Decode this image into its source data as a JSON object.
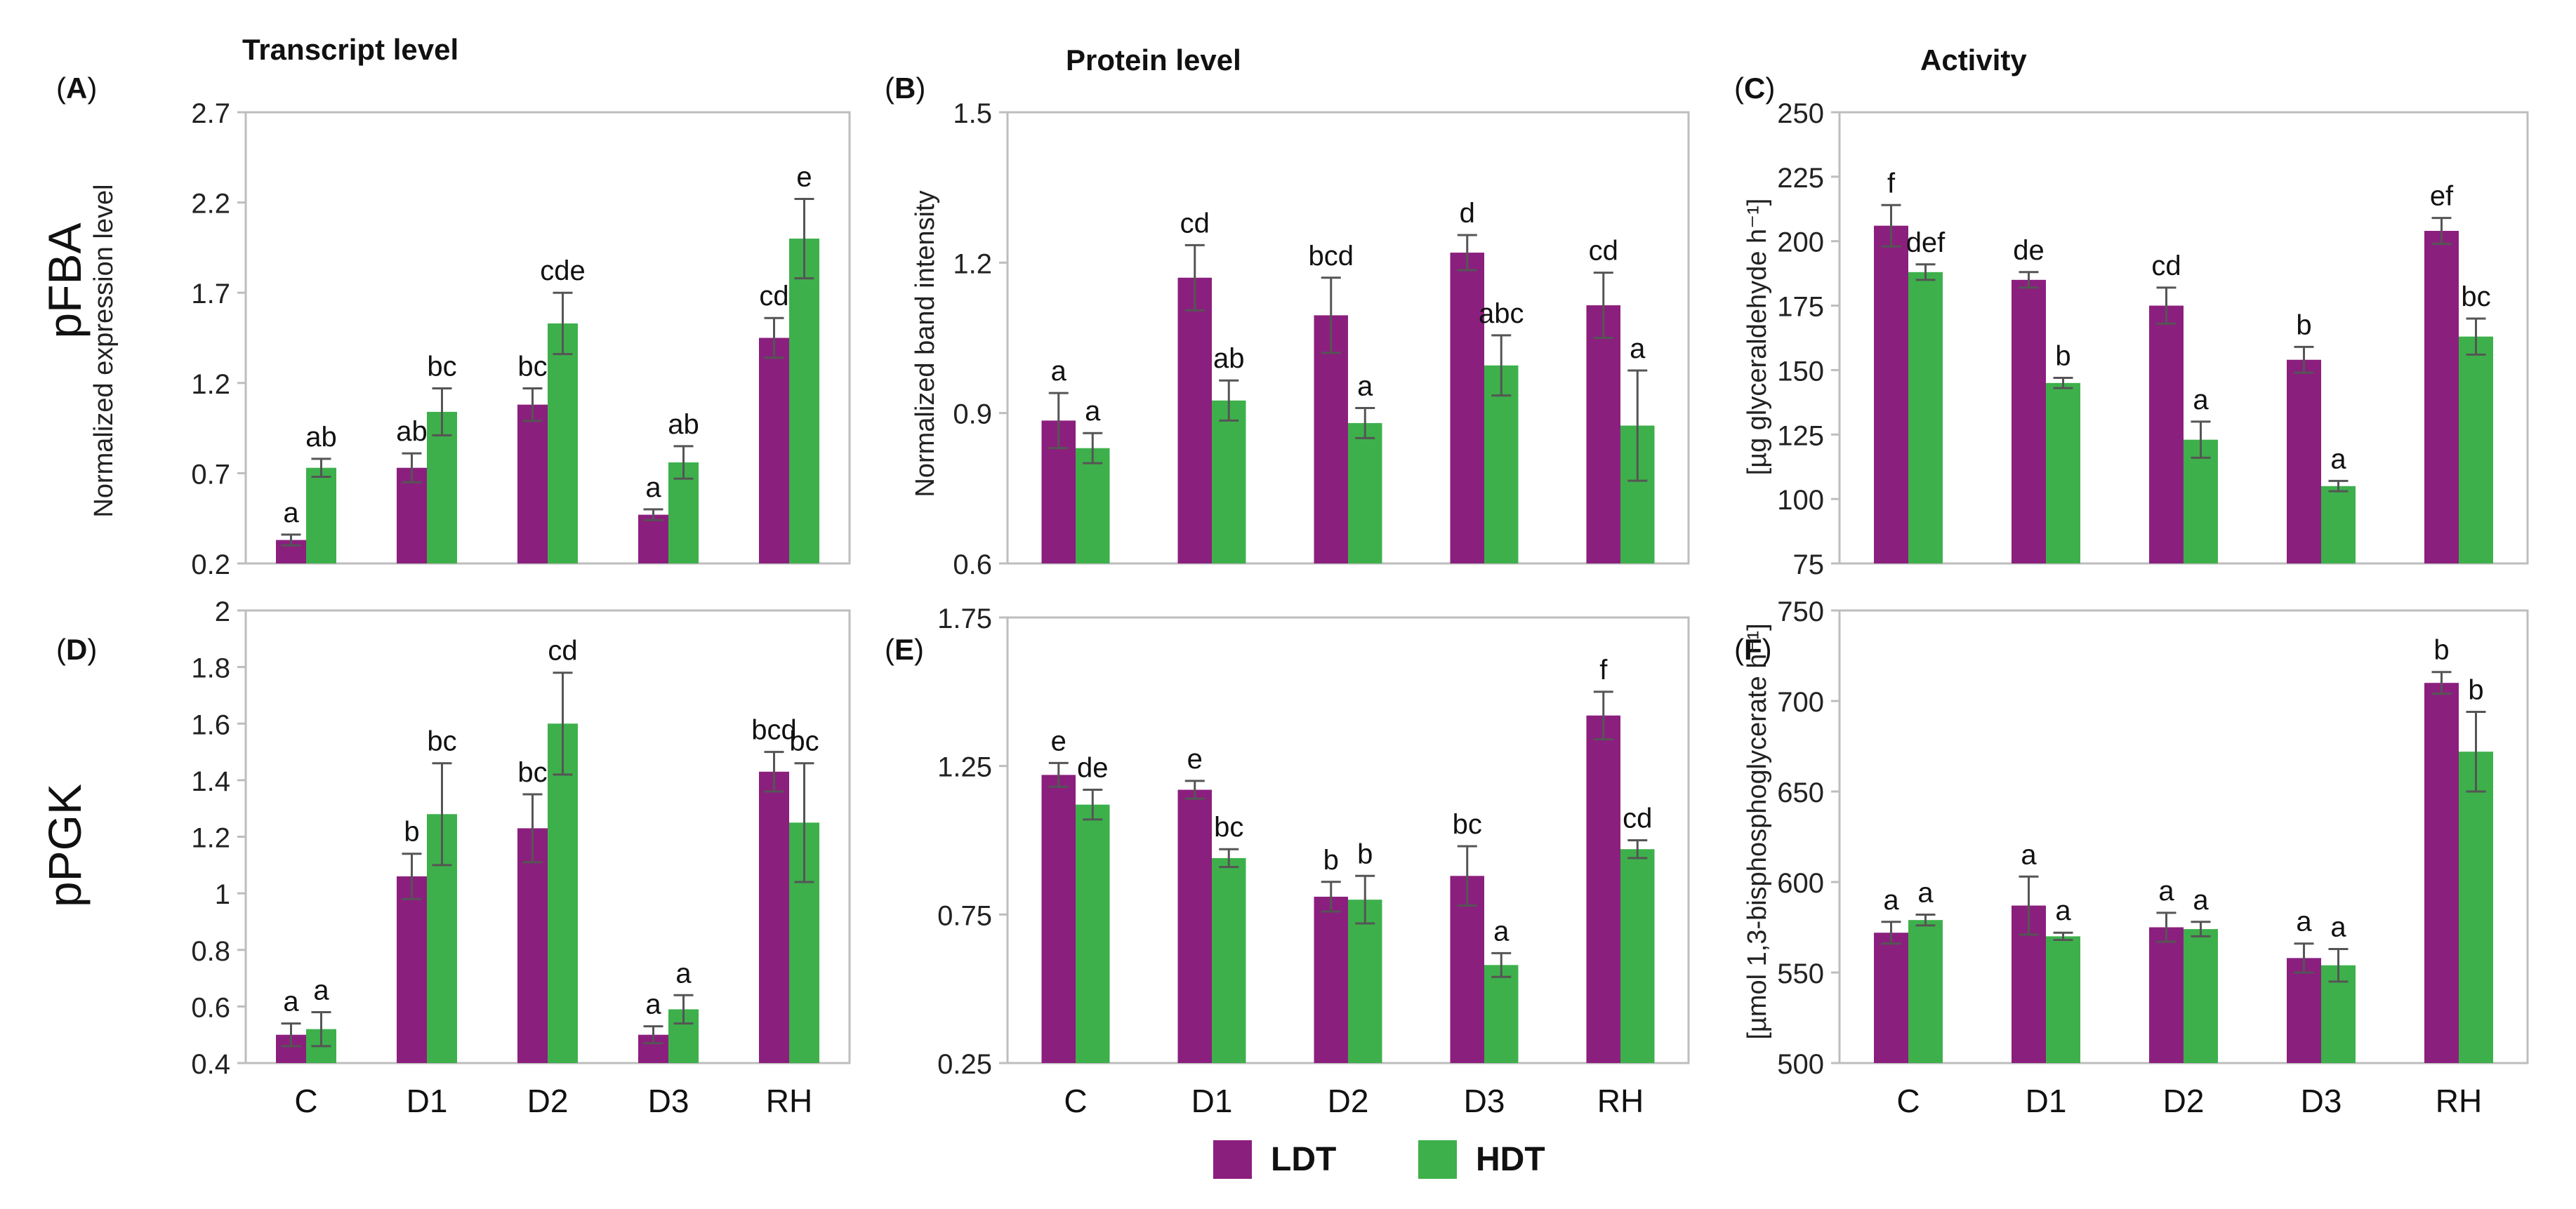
{
  "headers": {
    "col1": "Transcript level",
    "col2": "Protein level",
    "col3": "Activity"
  },
  "row_labels": {
    "top": "pFBA",
    "bottom": "pPGK"
  },
  "legend": {
    "ldt_label": "LDT",
    "hdt_label": "HDT",
    "ldt_color": "#8B1F7E",
    "hdt_color": "#3DB04B"
  },
  "chart_data": [
    {
      "id": "A",
      "panel_label": "(A)",
      "type": "bar",
      "categories": [
        "C",
        "D1",
        "D2",
        "D3",
        "RH"
      ],
      "ylabel": "Normalized expression level",
      "ylim": [
        0.2,
        2.7
      ],
      "yticks": [
        "0.2",
        "0.7",
        "1.2",
        "1.7",
        "2.2",
        "2.7"
      ],
      "grid": false,
      "series": [
        {
          "name": "LDT",
          "values": [
            0.33,
            0.73,
            1.08,
            0.47,
            1.45
          ],
          "errors": [
            0.03,
            0.08,
            0.09,
            0.03,
            0.11
          ],
          "letters": [
            "a",
            "ab",
            "bc",
            "a",
            "cd"
          ]
        },
        {
          "name": "HDT",
          "values": [
            0.73,
            1.04,
            1.53,
            0.76,
            2.0
          ],
          "errors": [
            0.05,
            0.13,
            0.17,
            0.09,
            0.22
          ],
          "letters": [
            "ab",
            "bc",
            "cde",
            "ab",
            "e"
          ]
        }
      ]
    },
    {
      "id": "B",
      "panel_label": "(B)",
      "type": "bar",
      "categories": [
        "C",
        "D1",
        "D2",
        "D3",
        "RH"
      ],
      "ylabel": "Normalized band intensity",
      "ylim": [
        0.6,
        1.5
      ],
      "yticks": [
        "0.6",
        "0.9",
        "1.2",
        "1.5"
      ],
      "grid": false,
      "series": [
        {
          "name": "LDT",
          "values": [
            0.885,
            1.17,
            1.095,
            1.22,
            1.115
          ],
          "errors": [
            0.055,
            0.065,
            0.075,
            0.035,
            0.065
          ],
          "letters": [
            "a",
            "cd",
            "bcd",
            "d",
            "cd"
          ]
        },
        {
          "name": "HDT",
          "values": [
            0.83,
            0.925,
            0.88,
            0.995,
            0.875
          ],
          "errors": [
            0.03,
            0.04,
            0.03,
            0.06,
            0.11
          ],
          "letters": [
            "a",
            "ab",
            "a",
            "abc",
            "a"
          ]
        }
      ]
    },
    {
      "id": "C",
      "panel_label": "(C)",
      "type": "bar",
      "categories": [
        "C",
        "D1",
        "D2",
        "D3",
        "RH"
      ],
      "ylabel": "[µg glyceraldehyde h⁻¹]",
      "ylim": [
        75,
        250
      ],
      "yticks": [
        "75",
        "100",
        "125",
        "150",
        "175",
        "200",
        "225",
        "250"
      ],
      "grid": false,
      "series": [
        {
          "name": "LDT",
          "values": [
            206,
            185,
            175,
            154,
            204
          ],
          "errors": [
            8,
            3,
            7,
            5,
            5
          ],
          "letters": [
            "f",
            "de",
            "cd",
            "b",
            "ef"
          ]
        },
        {
          "name": "HDT",
          "values": [
            188,
            145,
            123,
            105,
            163
          ],
          "errors": [
            3,
            2,
            7,
            2,
            7
          ],
          "letters": [
            "def",
            "b",
            "a",
            "a",
            "bc"
          ]
        }
      ]
    },
    {
      "id": "D",
      "panel_label": "(D)",
      "type": "bar",
      "categories": [
        "C",
        "D1",
        "D2",
        "D3",
        "RH"
      ],
      "ylabel": "",
      "ylim": [
        0.4,
        2.0
      ],
      "yticks": [
        "0.4",
        "0.6",
        "0.8",
        "1",
        "1.2",
        "1.4",
        "1.6",
        "1.8",
        "2"
      ],
      "grid": false,
      "series": [
        {
          "name": "LDT",
          "values": [
            0.5,
            1.06,
            1.23,
            0.5,
            1.43
          ],
          "errors": [
            0.04,
            0.08,
            0.12,
            0.03,
            0.07
          ],
          "letters": [
            "a",
            "b",
            "bc",
            "a",
            "bcd"
          ]
        },
        {
          "name": "HDT",
          "values": [
            0.52,
            1.28,
            1.6,
            0.59,
            1.25
          ],
          "errors": [
            0.06,
            0.18,
            0.18,
            0.05,
            0.21
          ],
          "letters": [
            "a",
            "bc",
            "cd",
            "a",
            "bc"
          ]
        }
      ]
    },
    {
      "id": "E",
      "panel_label": "(E)",
      "type": "bar",
      "categories": [
        "C",
        "D1",
        "D2",
        "D3",
        "RH"
      ],
      "ylabel": "",
      "ylim": [
        0.25,
        1.75
      ],
      "yticks": [
        "0.25",
        "0.75",
        "1.25",
        "1.75"
      ],
      "grid": false,
      "series": [
        {
          "name": "LDT",
          "values": [
            1.22,
            1.17,
            0.81,
            0.88,
            1.42
          ],
          "errors": [
            0.04,
            0.03,
            0.05,
            0.1,
            0.08
          ],
          "letters": [
            "e",
            "e",
            "b",
            "bc",
            "f"
          ]
        },
        {
          "name": "HDT",
          "values": [
            1.12,
            0.94,
            0.8,
            0.58,
            0.97
          ],
          "errors": [
            0.05,
            0.03,
            0.08,
            0.04,
            0.03
          ],
          "letters": [
            "de",
            "bc",
            "b",
            "a",
            "cd"
          ]
        }
      ]
    },
    {
      "id": "F",
      "panel_label": "(F)",
      "type": "bar",
      "categories": [
        "C",
        "D1",
        "D2",
        "D3",
        "RH"
      ],
      "ylabel": "[µmol 1,3-bisphosphoglycerate h⁻¹]",
      "ylim": [
        500,
        750
      ],
      "yticks": [
        "500",
        "550",
        "600",
        "650",
        "700",
        "750"
      ],
      "grid": false,
      "series": [
        {
          "name": "LDT",
          "values": [
            572,
            587,
            575,
            558,
            710
          ],
          "errors": [
            6,
            16,
            8,
            8,
            6
          ],
          "letters": [
            "a",
            "a",
            "a",
            "a",
            "b"
          ]
        },
        {
          "name": "HDT",
          "values": [
            579,
            570,
            574,
            554,
            672
          ],
          "errors": [
            3,
            2,
            4,
            9,
            22
          ],
          "letters": [
            "a",
            "a",
            "a",
            "a",
            "b"
          ]
        }
      ]
    }
  ]
}
